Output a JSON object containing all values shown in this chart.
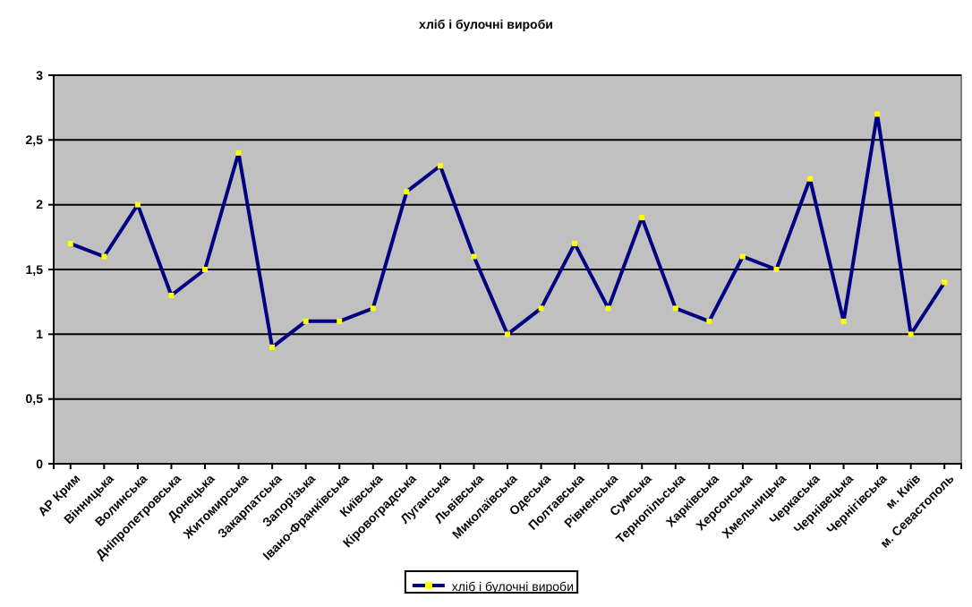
{
  "chart_data": {
    "type": "line",
    "title": "хліб і булочні вироби",
    "categories": [
      "АР Крим",
      "Вінницька",
      "Волинська",
      "Дніпропетровська",
      "Донецька",
      "Житомирська",
      "Закарпатська",
      "Запорізька",
      "Івано-Франківська",
      "Київська",
      "Кіровоградська",
      "Луганська",
      "Львівська",
      "Миколаївська",
      "Одеська",
      "Полтавська",
      "Рівненська",
      "Сумська",
      "Тернопільська",
      "Харківська",
      "Херсонська",
      "Хмельницька",
      "Черкаська",
      "Чернівецька",
      "Чернігівська",
      "м. Київ",
      "м. Севастополь"
    ],
    "series": [
      {
        "name": "хліб і булочні вироби",
        "color": "#000080",
        "values": [
          1.7,
          1.6,
          2.0,
          1.3,
          1.5,
          2.4,
          0.9,
          1.1,
          1.1,
          1.2,
          2.1,
          2.3,
          1.6,
          1.0,
          1.2,
          1.7,
          1.2,
          1.9,
          1.2,
          1.1,
          1.6,
          1.5,
          2.2,
          1.1,
          2.7,
          1.0,
          1.4
        ]
      }
    ],
    "ylim": [
      0,
      3
    ],
    "yticks": [
      0,
      {
        "value": 0.5,
        "label": "0,5"
      },
      1,
      {
        "value": 1.5,
        "label": "1,5"
      },
      2,
      {
        "value": 2.5,
        "label": "2,5"
      },
      3
    ],
    "grid": "y",
    "legend": "bottom",
    "marker": "square",
    "line_style": "solid"
  }
}
